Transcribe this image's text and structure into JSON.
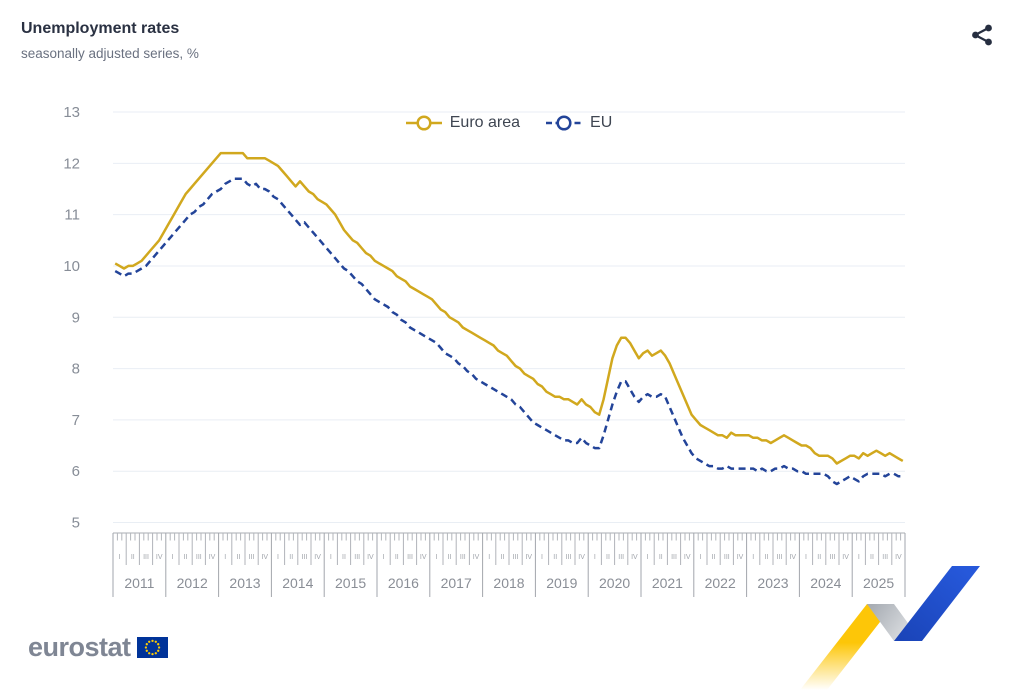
{
  "header": {
    "title": "Unemployment rates",
    "subtitle": "seasonally adjusted series, %"
  },
  "toolbar": {
    "share_tooltip": "share"
  },
  "footer": {
    "logo_text": "eurostat"
  },
  "colors": {
    "euro_area_line": "#d1a81e",
    "eu_line": "#234499",
    "title_text": "#2a3142",
    "subtitle_text": "#6a7180",
    "axis_text": "#878d97",
    "gridline": "#e9eef4",
    "ribbon_yellow": "#fdc608",
    "ribbon_blue": "#1d4ecd",
    "flag_blue": "#003399",
    "flag_star_yellow": "#ffcc00"
  },
  "chart_data": {
    "type": "line",
    "title": "Unemployment rates",
    "subtitle": "seasonally adjusted series, %",
    "unit": "%",
    "frequency": "monthly",
    "x_range": "2011-01 to 2025-12",
    "years": [
      2011,
      2012,
      2013,
      2014,
      2015,
      2016,
      2017,
      2018,
      2019,
      2020,
      2021,
      2022,
      2023,
      2024,
      2025
    ],
    "quarter_labels": [
      "I",
      "II",
      "III",
      "IV"
    ],
    "y_ticks": [
      13,
      12,
      11,
      10,
      9,
      8,
      7,
      6,
      5
    ],
    "ylim": [
      5,
      13
    ],
    "grid": true,
    "legend_position": "top-center",
    "series": [
      {
        "name": "Euro area",
        "color": "#d1a81e",
        "dash": "solid",
        "values": [
          10.05,
          10.0,
          9.95,
          10.0,
          10.0,
          10.05,
          10.1,
          10.2,
          10.3,
          10.4,
          10.5,
          10.65,
          10.8,
          10.95,
          11.1,
          11.25,
          11.4,
          11.5,
          11.6,
          11.7,
          11.8,
          11.9,
          12.0,
          12.1,
          12.2,
          12.2,
          12.2,
          12.2,
          12.2,
          12.2,
          12.1,
          12.1,
          12.1,
          12.1,
          12.1,
          12.05,
          12.0,
          11.95,
          11.85,
          11.75,
          11.65,
          11.55,
          11.65,
          11.55,
          11.45,
          11.4,
          11.3,
          11.25,
          11.2,
          11.1,
          11.0,
          10.85,
          10.7,
          10.6,
          10.5,
          10.45,
          10.35,
          10.25,
          10.2,
          10.1,
          10.05,
          10.0,
          9.95,
          9.9,
          9.8,
          9.75,
          9.7,
          9.6,
          9.55,
          9.5,
          9.45,
          9.4,
          9.35,
          9.25,
          9.15,
          9.1,
          9.0,
          8.95,
          8.9,
          8.8,
          8.75,
          8.7,
          8.65,
          8.6,
          8.55,
          8.5,
          8.45,
          8.35,
          8.3,
          8.25,
          8.15,
          8.05,
          8.0,
          7.9,
          7.85,
          7.8,
          7.7,
          7.65,
          7.55,
          7.5,
          7.45,
          7.45,
          7.4,
          7.4,
          7.35,
          7.3,
          7.4,
          7.3,
          7.25,
          7.15,
          7.1,
          7.4,
          7.8,
          8.2,
          8.45,
          8.6,
          8.6,
          8.5,
          8.35,
          8.2,
          8.3,
          8.35,
          8.25,
          8.3,
          8.35,
          8.25,
          8.1,
          7.9,
          7.7,
          7.5,
          7.3,
          7.1,
          7.0,
          6.9,
          6.85,
          6.8,
          6.75,
          6.7,
          6.7,
          6.65,
          6.75,
          6.7,
          6.7,
          6.7,
          6.7,
          6.65,
          6.65,
          6.6,
          6.6,
          6.55,
          6.6,
          6.65,
          6.7,
          6.65,
          6.6,
          6.55,
          6.5,
          6.5,
          6.45,
          6.35,
          6.3,
          6.3,
          6.3,
          6.25,
          6.15,
          6.2,
          6.25,
          6.3,
          6.3,
          6.25,
          6.35,
          6.3,
          6.35,
          6.4,
          6.35,
          6.3,
          6.35,
          6.3,
          6.25,
          6.2
        ]
      },
      {
        "name": "EU",
        "color": "#234499",
        "dash": "dashed",
        "values": [
          9.9,
          9.85,
          9.8,
          9.85,
          9.85,
          9.9,
          9.95,
          10.0,
          10.1,
          10.2,
          10.3,
          10.4,
          10.5,
          10.6,
          10.7,
          10.8,
          10.9,
          11.0,
          11.05,
          11.15,
          11.2,
          11.3,
          11.4,
          11.45,
          11.5,
          11.6,
          11.65,
          11.7,
          11.7,
          11.7,
          11.6,
          11.55,
          11.6,
          11.5,
          11.5,
          11.45,
          11.35,
          11.3,
          11.2,
          11.1,
          11.0,
          10.9,
          10.8,
          10.85,
          10.75,
          10.65,
          10.55,
          10.45,
          10.35,
          10.25,
          10.15,
          10.05,
          9.95,
          9.9,
          9.8,
          9.7,
          9.65,
          9.55,
          9.45,
          9.35,
          9.3,
          9.25,
          9.2,
          9.1,
          9.05,
          8.95,
          8.9,
          8.8,
          8.75,
          8.7,
          8.65,
          8.6,
          8.55,
          8.5,
          8.4,
          8.3,
          8.25,
          8.2,
          8.1,
          8.05,
          7.95,
          7.9,
          7.8,
          7.75,
          7.7,
          7.65,
          7.6,
          7.55,
          7.5,
          7.45,
          7.4,
          7.3,
          7.25,
          7.15,
          7.05,
          6.95,
          6.9,
          6.85,
          6.8,
          6.75,
          6.7,
          6.65,
          6.6,
          6.6,
          6.55,
          6.55,
          6.65,
          6.55,
          6.5,
          6.45,
          6.45,
          6.7,
          7.0,
          7.3,
          7.55,
          7.75,
          7.75,
          7.6,
          7.45,
          7.35,
          7.45,
          7.5,
          7.45,
          7.45,
          7.5,
          7.45,
          7.25,
          7.05,
          6.85,
          6.65,
          6.5,
          6.35,
          6.25,
          6.2,
          6.15,
          6.1,
          6.1,
          6.05,
          6.05,
          6.1,
          6.05,
          6.05,
          6.05,
          6.05,
          6.05,
          6.05,
          6.0,
          6.05,
          6.0,
          6.0,
          6.05,
          6.05,
          6.1,
          6.05,
          6.05,
          6.0,
          6.0,
          5.95,
          5.95,
          5.95,
          5.95,
          5.95,
          5.9,
          5.8,
          5.75,
          5.8,
          5.85,
          5.9,
          5.85,
          5.8,
          5.9,
          5.95,
          5.95,
          5.95,
          5.95,
          5.9,
          5.95,
          5.95,
          5.9,
          5.9
        ]
      }
    ]
  }
}
